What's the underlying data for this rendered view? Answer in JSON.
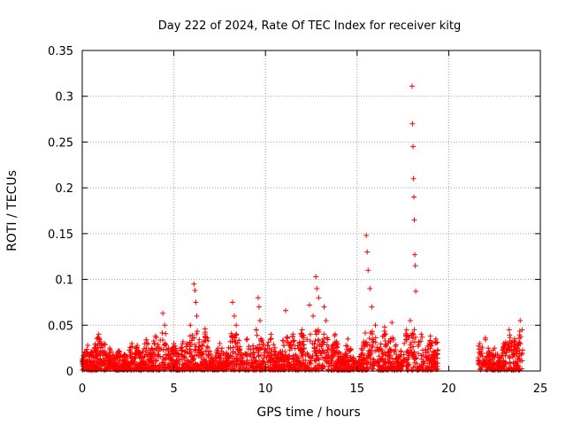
{
  "chart_data": {
    "type": "scatter",
    "title": "Day 222 of 2024, Rate Of TEC Index for receiver kitg",
    "xlabel": "GPS time / hours",
    "ylabel": "ROTI / TECUs",
    "xlim": [
      0,
      25
    ],
    "ylim": [
      0,
      0.35
    ],
    "grid": true,
    "x_ticks": [
      0,
      5,
      10,
      15,
      20,
      25
    ],
    "y_ticks": [
      0,
      0.05,
      0.1,
      0.15,
      0.2,
      0.25,
      0.3,
      0.35
    ],
    "x_tick_labels": [
      "0",
      "5",
      "10",
      "15",
      "20",
      "25"
    ],
    "y_tick_labels": [
      "0",
      "0.05",
      "0.1",
      "0.15",
      "0.2",
      "0.25",
      "0.3",
      "0.35"
    ],
    "marker": "+",
    "color": "#ff0000",
    "data_gaps_hours": [
      [
        19.4,
        21.6
      ]
    ],
    "series": [
      {
        "name": "ROTI",
        "points": [
          [
            0.1,
            0.015
          ],
          [
            0.3,
            0.028
          ],
          [
            0.5,
            0.02
          ],
          [
            0.8,
            0.035
          ],
          [
            0.9,
            0.04
          ],
          [
            1.2,
            0.03
          ],
          [
            1.5,
            0.025
          ],
          [
            2.0,
            0.022
          ],
          [
            2.3,
            0.018
          ],
          [
            2.7,
            0.03
          ],
          [
            3.0,
            0.028
          ],
          [
            3.5,
            0.034
          ],
          [
            4.0,
            0.038
          ],
          [
            4.4,
            0.063
          ],
          [
            4.5,
            0.05
          ],
          [
            5.0,
            0.03
          ],
          [
            5.5,
            0.032
          ],
          [
            5.9,
            0.05
          ],
          [
            6.1,
            0.095
          ],
          [
            6.15,
            0.088
          ],
          [
            6.2,
            0.075
          ],
          [
            6.25,
            0.06
          ],
          [
            6.7,
            0.046
          ],
          [
            7.5,
            0.03
          ],
          [
            8.2,
            0.075
          ],
          [
            8.3,
            0.06
          ],
          [
            8.4,
            0.05
          ],
          [
            9.0,
            0.035
          ],
          [
            9.5,
            0.045
          ],
          [
            9.6,
            0.08
          ],
          [
            9.65,
            0.07
          ],
          [
            9.7,
            0.055
          ],
          [
            10.3,
            0.04
          ],
          [
            11.0,
            0.028
          ],
          [
            11.1,
            0.066
          ],
          [
            11.5,
            0.04
          ],
          [
            12.0,
            0.045
          ],
          [
            12.4,
            0.072
          ],
          [
            12.6,
            0.06
          ],
          [
            12.75,
            0.103
          ],
          [
            12.8,
            0.09
          ],
          [
            12.9,
            0.08
          ],
          [
            13.2,
            0.07
          ],
          [
            13.3,
            0.055
          ],
          [
            13.8,
            0.04
          ],
          [
            14.5,
            0.035
          ],
          [
            15.5,
            0.148
          ],
          [
            15.55,
            0.13
          ],
          [
            15.6,
            0.11
          ],
          [
            15.7,
            0.09
          ],
          [
            15.8,
            0.07
          ],
          [
            16.0,
            0.05
          ],
          [
            16.5,
            0.048
          ],
          [
            16.9,
            0.053
          ],
          [
            17.7,
            0.045
          ],
          [
            17.9,
            0.055
          ],
          [
            18.0,
            0.311
          ],
          [
            18.02,
            0.27
          ],
          [
            18.05,
            0.245
          ],
          [
            18.08,
            0.21
          ],
          [
            18.1,
            0.19
          ],
          [
            18.12,
            0.165
          ],
          [
            18.15,
            0.127
          ],
          [
            18.18,
            0.115
          ],
          [
            18.2,
            0.087
          ],
          [
            18.5,
            0.04
          ],
          [
            19.0,
            0.038
          ],
          [
            19.3,
            0.035
          ],
          [
            21.7,
            0.03
          ],
          [
            22.0,
            0.036
          ],
          [
            22.5,
            0.025
          ],
          [
            23.0,
            0.03
          ],
          [
            23.3,
            0.045
          ],
          [
            23.6,
            0.035
          ],
          [
            23.9,
            0.055
          ],
          [
            24.0,
            0.045
          ]
        ]
      }
    ]
  }
}
